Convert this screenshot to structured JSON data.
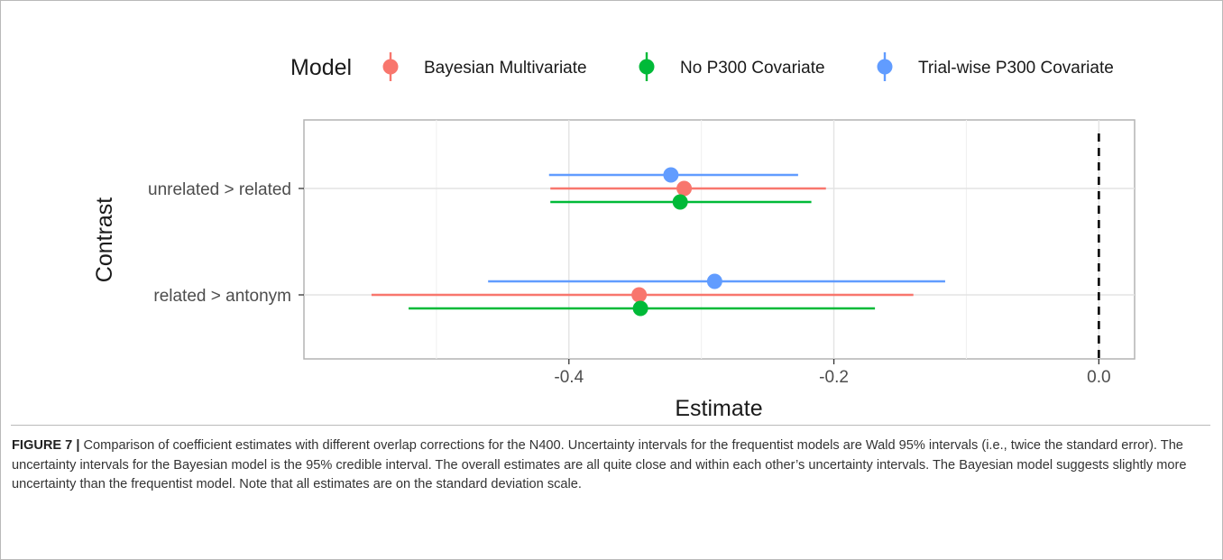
{
  "chart_data": {
    "type": "scatter",
    "subtype": "point-range",
    "xlabel": "Estimate",
    "ylabel": "Contrast",
    "xlim": [
      -0.6,
      0.027
    ],
    "x_ticks": [
      -0.4,
      -0.2,
      0.0
    ],
    "x_tick_labels": [
      "-0.4",
      "-0.2",
      "0.0"
    ],
    "categories": [
      "unrelated > related",
      "related > antonym"
    ],
    "reference_line": {
      "x": 0.0,
      "style": "dashed"
    },
    "grid": true,
    "legend": {
      "title": "Model",
      "placement": "top",
      "entries": [
        "Bayesian Multivariate",
        "No P300 Covariate",
        "Trial-wise P300 Covariate"
      ]
    },
    "series": [
      {
        "name": "Bayesian Multivariate",
        "color": "#F8766D",
        "points": [
          {
            "category": "unrelated > related",
            "estimate": -0.313,
            "lower": -0.414,
            "upper": -0.206
          },
          {
            "category": "related > antonym",
            "estimate": -0.347,
            "lower": -0.549,
            "upper": -0.14
          }
        ]
      },
      {
        "name": "No P300 Covariate",
        "color": "#00BA38",
        "points": [
          {
            "category": "unrelated > related",
            "estimate": -0.316,
            "lower": -0.414,
            "upper": -0.217
          },
          {
            "category": "related > antonym",
            "estimate": -0.346,
            "lower": -0.521,
            "upper": -0.169
          }
        ]
      },
      {
        "name": "Trial-wise P300 Covariate",
        "color": "#619CFF",
        "points": [
          {
            "category": "unrelated > related",
            "estimate": -0.323,
            "lower": -0.415,
            "upper": -0.227
          },
          {
            "category": "related > antonym",
            "estimate": -0.29,
            "lower": -0.461,
            "upper": -0.116
          }
        ]
      }
    ]
  },
  "caption": {
    "label": "FIGURE 7 |",
    "text": "Comparison of coefficient estimates with different overlap corrections for the N400. Uncertainty intervals for the frequentist models are Wald 95% intervals (i.e., twice the standard error). The uncertainty intervals for the Bayesian model is the 95% credible interval. The overall estimates are all quite close and within each other’s uncertainty intervals. The Bayesian model suggests slightly more uncertainty than the frequentist model. Note that all estimates are on the standard deviation scale."
  }
}
